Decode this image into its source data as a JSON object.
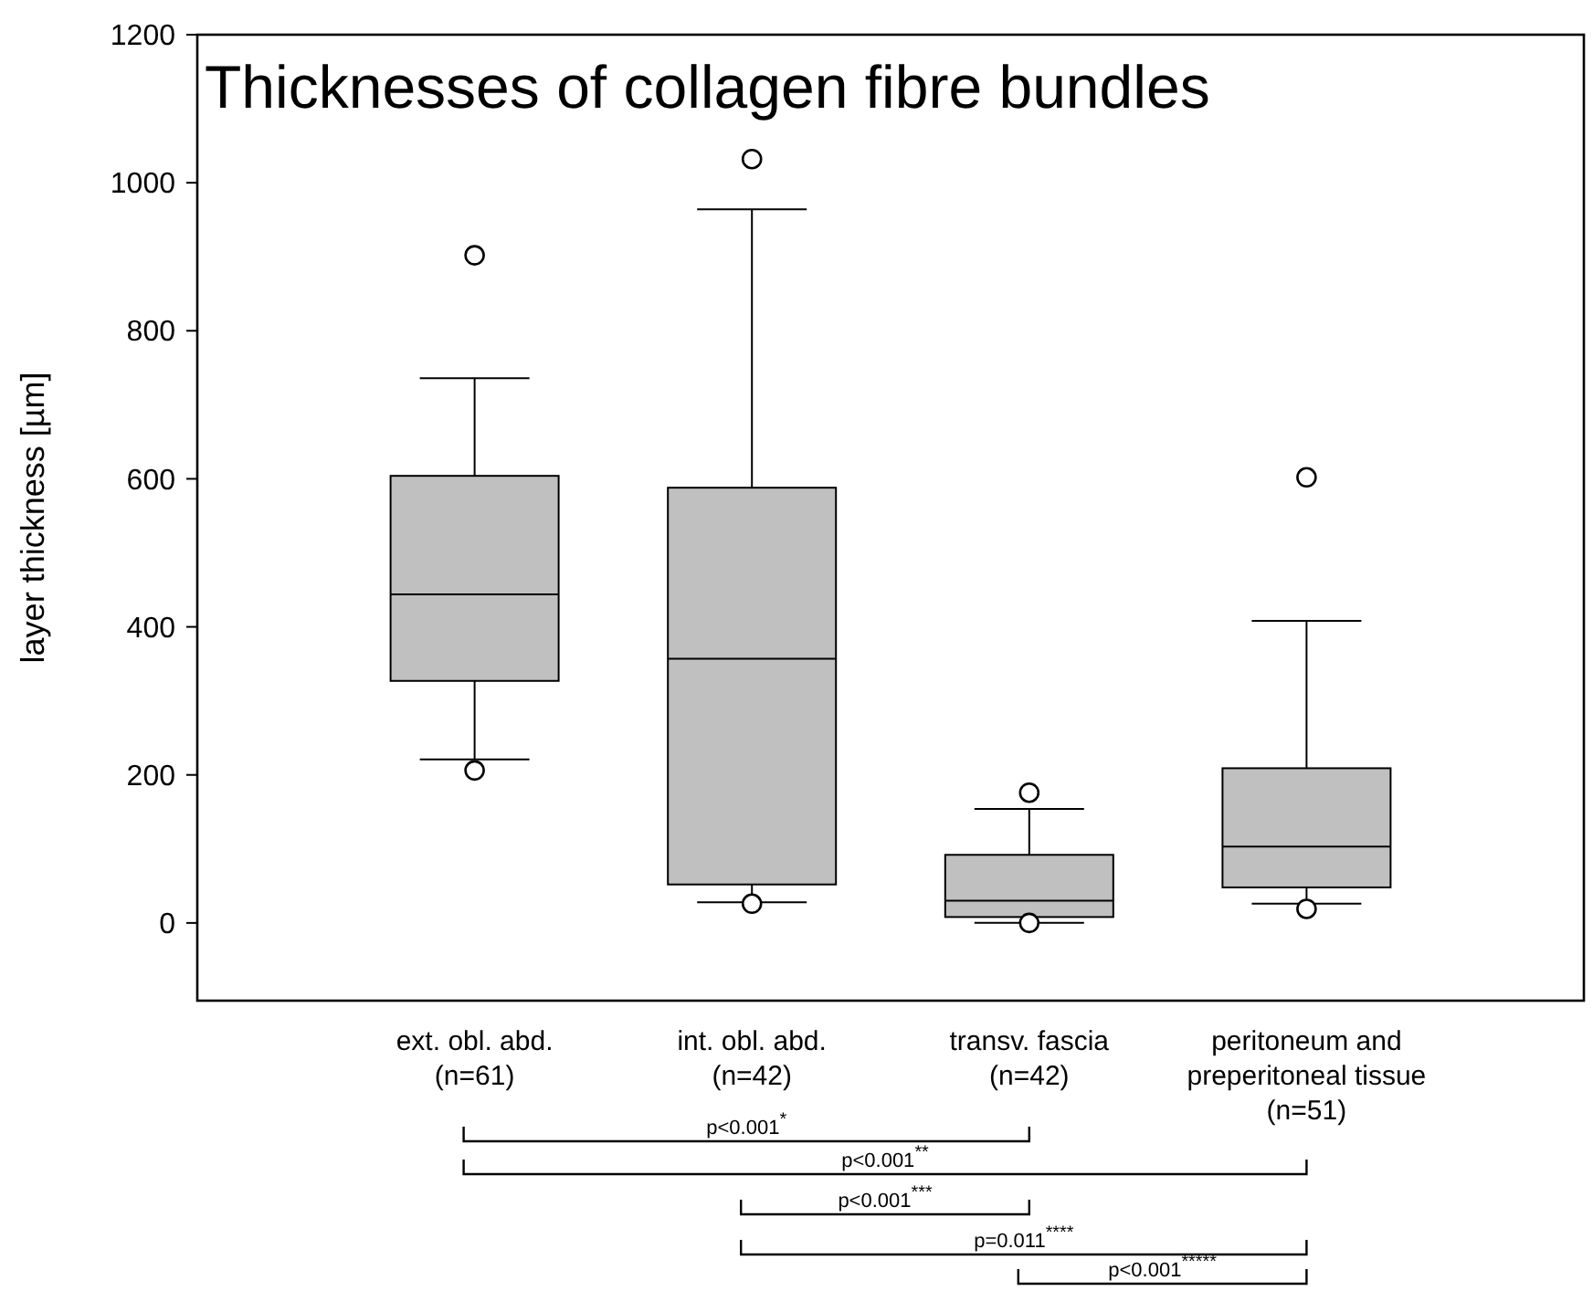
{
  "chart_data": {
    "type": "box",
    "title": "Thicknesses of collagen fibre bundles",
    "ylabel": "layer thickness [µm]",
    "categories": [
      "ext. obl. abd.\n(n=61)",
      "int. obl. abd.\n(n=42)",
      "transv. fascia\n(n=42)",
      "peritoneum and\npreperitoneal tissue\n(n=51)"
    ],
    "boxes": [
      {
        "low": 221,
        "q1": 327,
        "median": 444,
        "q3": 604,
        "high": 736,
        "outliers": [
          902,
          206
        ]
      },
      {
        "low": 28,
        "q1": 52,
        "median": 357,
        "q3": 588,
        "high": 964,
        "outliers": [
          1032,
          26
        ]
      },
      {
        "low": 0,
        "q1": 8,
        "median": 30,
        "q3": 92,
        "high": 154,
        "outliers": [
          176,
          0
        ]
      },
      {
        "low": 26,
        "q1": 48,
        "median": 103,
        "q3": 209,
        "high": 408,
        "outliers": [
          602,
          19
        ]
      }
    ],
    "color": "#c0c0c0",
    "ylim": [
      -105,
      1200
    ],
    "yticks": [
      0,
      200,
      400,
      600,
      800,
      1000,
      1200
    ],
    "grid": false,
    "annotations": [
      "p<0.001$^{*}$",
      "p<0.001$^{**}$",
      "p<0.001$^{***}$",
      "p=0.011$^{****}$",
      "p<0.001$^{*****}$"
    ]
  }
}
